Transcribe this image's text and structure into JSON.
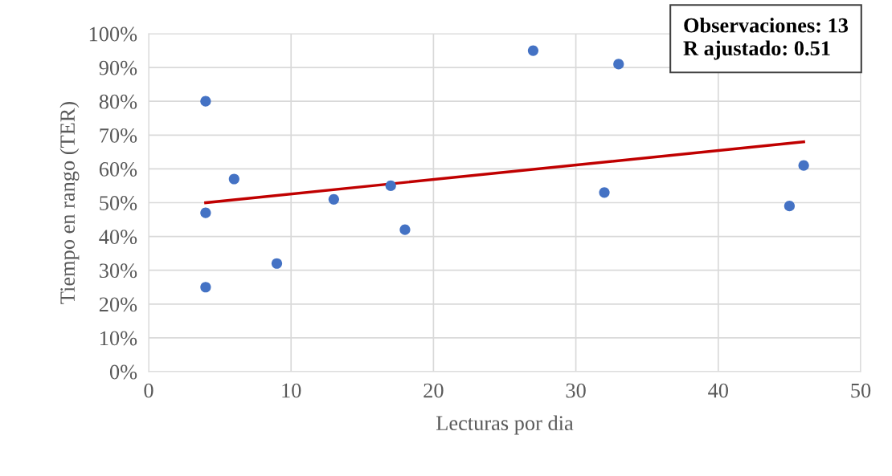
{
  "chart_data": {
    "type": "scatter",
    "xlabel": "Lecturas por dia",
    "ylabel": "Tiempo en rango (TER)",
    "series": [
      {
        "marker": "circle",
        "color": "#4472c4",
        "x": [
          4,
          4,
          4,
          6,
          9,
          13,
          17,
          18,
          27,
          32,
          33,
          45,
          46
        ],
        "values": [
          80,
          47,
          25,
          57,
          32,
          51,
          55,
          42,
          95,
          53,
          91,
          49,
          61
        ]
      },
      {
        "type": "line",
        "color": "#c00000",
        "x": [
          4,
          46
        ],
        "values": [
          50,
          68
        ]
      }
    ],
    "xlim": [
      0,
      50
    ],
    "xticks": [
      0,
      10,
      20,
      30,
      40,
      50
    ],
    "ylim": [
      0,
      100
    ],
    "yticks": [
      {
        "value": 0,
        "label": "0%"
      },
      {
        "value": 10,
        "label": "10%"
      },
      {
        "value": 20,
        "label": "20%"
      },
      {
        "value": 30,
        "label": "30%"
      },
      {
        "value": 40,
        "label": "40%"
      },
      {
        "value": 50,
        "label": "50%"
      },
      {
        "value": 60,
        "label": "60%"
      },
      {
        "value": 70,
        "label": "70%"
      },
      {
        "value": 80,
        "label": "80%"
      },
      {
        "value": 90,
        "label": "90%"
      },
      {
        "value": 100,
        "label": "100%"
      }
    ],
    "grid": true,
    "line_style": "solid",
    "annotations": [
      "Observaciones: 13\nR ajustado: 0.51"
    ]
  }
}
